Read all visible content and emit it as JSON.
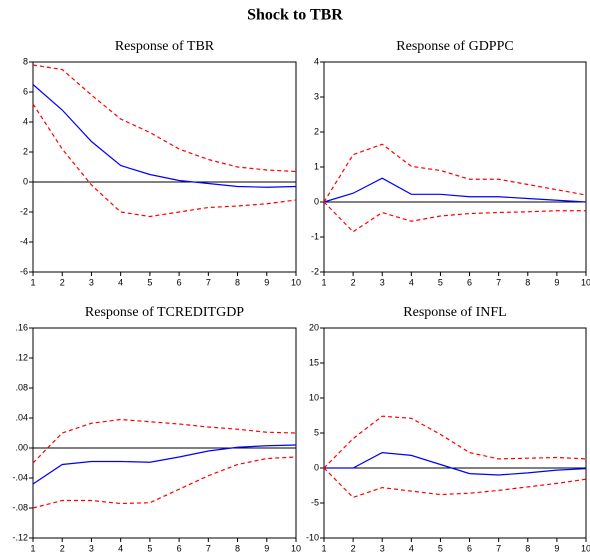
{
  "title": "Shock to TBR",
  "chart_data": [
    {
      "type": "line",
      "title": "Response of TBR",
      "x": [
        1,
        2,
        3,
        4,
        5,
        6,
        7,
        8,
        9,
        10
      ],
      "xlim": [
        1,
        10
      ],
      "xticks": [
        1,
        2,
        3,
        4,
        5,
        6,
        7,
        8,
        9,
        10
      ],
      "ylim": [
        -6,
        8
      ],
      "yticks": [
        -6,
        -4,
        -2,
        0,
        2,
        4,
        6,
        8
      ],
      "zero_line": 0,
      "series": [
        {
          "color": "#0000ff",
          "dash": false,
          "values": [
            6.5,
            4.8,
            2.7,
            1.1,
            0.5,
            0.1,
            -0.1,
            -0.3,
            -0.35,
            -0.3
          ]
        },
        {
          "color": "#ff0000",
          "dash": true,
          "values": [
            7.8,
            7.5,
            5.8,
            4.2,
            3.3,
            2.2,
            1.5,
            1.0,
            0.8,
            0.7
          ]
        },
        {
          "color": "#ff0000",
          "dash": true,
          "values": [
            5.2,
            2.2,
            -0.2,
            -2.0,
            -2.3,
            -2.0,
            -1.7,
            -1.6,
            -1.45,
            -1.2
          ]
        }
      ]
    },
    {
      "type": "line",
      "title": "Response of GDPPC",
      "x": [
        1,
        2,
        3,
        4,
        5,
        6,
        7,
        8,
        9,
        10
      ],
      "xlim": [
        1,
        10
      ],
      "xticks": [
        1,
        2,
        3,
        4,
        5,
        6,
        7,
        8,
        9,
        10
      ],
      "ylim": [
        -2,
        4
      ],
      "yticks": [
        -2,
        -1,
        0,
        1,
        2,
        3,
        4
      ],
      "zero_line": 0,
      "series": [
        {
          "color": "#0000ff",
          "dash": false,
          "values": [
            0,
            0.25,
            0.68,
            0.22,
            0.22,
            0.15,
            0.15,
            0.1,
            0.05,
            0
          ]
        },
        {
          "color": "#ff0000",
          "dash": true,
          "values": [
            0,
            1.35,
            1.65,
            1.02,
            0.9,
            0.65,
            0.65,
            0.5,
            0.35,
            0.2
          ]
        },
        {
          "color": "#ff0000",
          "dash": true,
          "values": [
            0,
            -0.85,
            -0.3,
            -0.55,
            -0.4,
            -0.33,
            -0.3,
            -0.28,
            -0.25,
            -0.25
          ]
        }
      ]
    },
    {
      "type": "line",
      "title": "Response of TCREDITGDP",
      "x": [
        1,
        2,
        3,
        4,
        5,
        6,
        7,
        8,
        9,
        10
      ],
      "xlim": [
        1,
        10
      ],
      "xticks": [
        1,
        2,
        3,
        4,
        5,
        6,
        7,
        8,
        9,
        10
      ],
      "ylim": [
        -0.12,
        0.16
      ],
      "yticks": [
        {
          "value": -0.12,
          "label": "-.12"
        },
        {
          "value": -0.08,
          "label": "-.08"
        },
        {
          "value": -0.04,
          "label": "-.04"
        },
        {
          "value": 0,
          "label": ".00"
        },
        {
          "value": 0.04,
          "label": ".04"
        },
        {
          "value": 0.08,
          "label": ".08"
        },
        {
          "value": 0.12,
          "label": ".12"
        },
        {
          "value": 0.16,
          "label": ".16"
        }
      ],
      "zero_line": 0,
      "series": [
        {
          "color": "#0000ff",
          "dash": false,
          "values": [
            -0.048,
            -0.022,
            -0.018,
            -0.018,
            -0.019,
            -0.012,
            -0.004,
            0.001,
            0.003,
            0.004
          ]
        },
        {
          "color": "#ff0000",
          "dash": true,
          "values": [
            -0.02,
            0.02,
            0.033,
            0.038,
            0.035,
            0.032,
            0.028,
            0.025,
            0.021,
            0.02
          ]
        },
        {
          "color": "#ff0000",
          "dash": true,
          "values": [
            -0.08,
            -0.07,
            -0.07,
            -0.074,
            -0.073,
            -0.055,
            -0.037,
            -0.022,
            -0.014,
            -0.012
          ]
        }
      ]
    },
    {
      "type": "line",
      "title": "Response of INFL",
      "x": [
        1,
        2,
        3,
        4,
        5,
        6,
        7,
        8,
        9,
        10
      ],
      "xlim": [
        1,
        10
      ],
      "xticks": [
        1,
        2,
        3,
        4,
        5,
        6,
        7,
        8,
        9,
        10
      ],
      "ylim": [
        -10,
        20
      ],
      "yticks": [
        -10,
        -5,
        0,
        5,
        10,
        15,
        20
      ],
      "zero_line": 0,
      "series": [
        {
          "color": "#0000ff",
          "dash": false,
          "values": [
            0,
            0,
            2.2,
            1.8,
            0.5,
            -0.8,
            -1.0,
            -0.7,
            -0.3,
            -0.1
          ]
        },
        {
          "color": "#ff0000",
          "dash": true,
          "values": [
            0,
            4.2,
            7.4,
            7.1,
            4.8,
            2.2,
            1.3,
            1.4,
            1.5,
            1.3
          ]
        },
        {
          "color": "#ff0000",
          "dash": true,
          "values": [
            0,
            -4.2,
            -2.8,
            -3.3,
            -3.8,
            -3.6,
            -3.2,
            -2.7,
            -2.2,
            -1.6
          ]
        }
      ]
    }
  ]
}
